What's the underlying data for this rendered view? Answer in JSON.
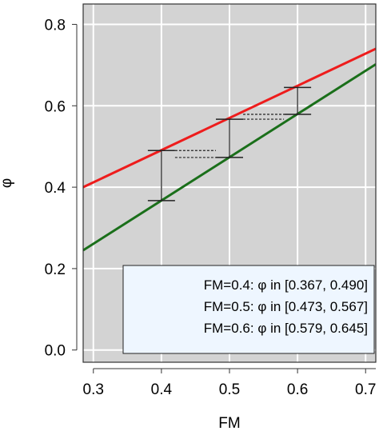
{
  "chart_data": {
    "type": "line",
    "xlabel": "FM",
    "ylabel": "φ",
    "xlim": [
      0.285,
      0.715
    ],
    "ylim": [
      -0.03,
      0.85
    ],
    "x_ticks": [
      0.3,
      0.4,
      0.5,
      0.6,
      0.7
    ],
    "x_tick_labels": [
      "0.3",
      "0.4",
      "0.5",
      "0.6",
      "0.7"
    ],
    "y_ticks": [
      0.0,
      0.2,
      0.4,
      0.6,
      0.8
    ],
    "y_tick_labels": [
      "0.0",
      "0.2",
      "0.4",
      "0.6",
      "0.8"
    ],
    "grid": true,
    "background_color": "#d3d3d3",
    "series": [
      {
        "color": "#ee1c1c",
        "x": [
          0.285,
          0.715
        ],
        "y": [
          0.4,
          0.74
        ]
      },
      {
        "color": "#1a6f1a",
        "x": [
          0.285,
          0.715
        ],
        "y": [
          0.245,
          0.702
        ]
      }
    ],
    "intervals": [
      {
        "x": 0.4,
        "low": 0.367,
        "high": 0.49
      },
      {
        "x": 0.5,
        "low": 0.473,
        "high": 0.567
      },
      {
        "x": 0.6,
        "low": 0.579,
        "high": 0.645
      }
    ],
    "dotted_connectors": [
      {
        "x1": 0.42,
        "x2": 0.48,
        "y": 0.49
      },
      {
        "x1": 0.42,
        "x2": 0.48,
        "y": 0.473
      },
      {
        "x1": 0.52,
        "x2": 0.58,
        "y": 0.567
      },
      {
        "x1": 0.52,
        "x2": 0.58,
        "y": 0.579
      }
    ],
    "legend": {
      "position": "bottom-right",
      "entries": [
        "FM=0.4: φ in [0.367, 0.490]",
        "FM=0.5: φ in [0.473, 0.567]",
        "FM=0.6: φ in [0.579, 0.645]"
      ],
      "background_color": "#eef6ff"
    }
  }
}
